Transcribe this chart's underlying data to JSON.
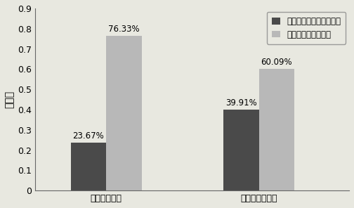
{
  "categories": [
    "自行车使用者",
    "非自行车使用者"
  ],
  "series": [
    {
      "name": "自行车方式出行选择优先",
      "values": [
        0.2367,
        0.3991
      ],
      "color": "#4a4a4a",
      "hatch": "...",
      "labels": [
        "23.67%",
        "39.91%"
      ]
    },
    {
      "name": "活动链模式选择优先",
      "values": [
        0.7633,
        0.6009
      ],
      "color": "#b8b8b8",
      "hatch": "...",
      "labels": [
        "76.33%",
        "60.09%"
      ]
    }
  ],
  "ylabel": "百分比",
  "ylim": [
    0,
    0.9
  ],
  "yticks": [
    0,
    0.1,
    0.2,
    0.3,
    0.4,
    0.5,
    0.6,
    0.7,
    0.8,
    0.9
  ],
  "bar_width": 0.28,
  "background_color": "#e8e8e0",
  "legend_loc": "upper right",
  "label_fontsize": 8.5,
  "tick_fontsize": 9,
  "ylabel_fontsize": 10,
  "legend_fontsize": 8.5
}
